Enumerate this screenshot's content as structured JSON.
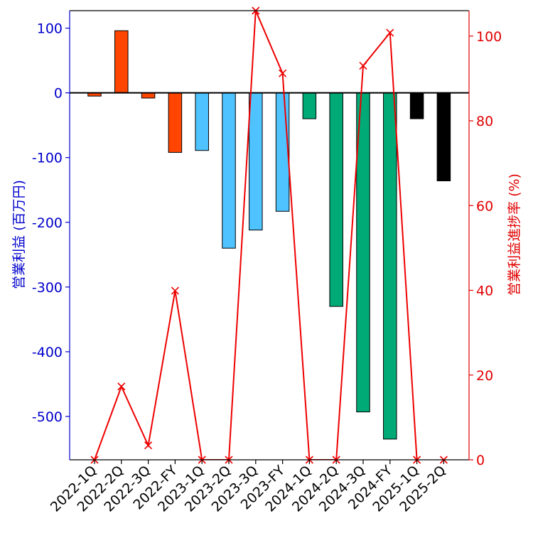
{
  "chart_data": {
    "type": "bar",
    "categories": [
      "2022-1Q",
      "2022-2Q",
      "2022-3Q",
      "2022-FY",
      "2023-1Q",
      "2023-2Q",
      "2023-3Q",
      "2023-FY",
      "2024-1Q",
      "2024-2Q",
      "2024-3Q",
      "2024-FY",
      "2025-1Q",
      "2025-2Q"
    ],
    "series": [
      {
        "axis": "left",
        "type": "bar",
        "values": [
          -5,
          96,
          -8,
          -92,
          -89,
          -240,
          -212,
          -183,
          -40,
          -330,
          -493,
          -535,
          -40,
          -136
        ],
        "colors": [
          "#ff4500",
          "#ff4500",
          "#ff4500",
          "#ff4500",
          "#4fc3ff",
          "#4fc3ff",
          "#4fc3ff",
          "#4fc3ff",
          "#00aa77",
          "#00aa77",
          "#00aa77",
          "#00aa77",
          "#000000",
          "#000000"
        ]
      },
      {
        "axis": "right",
        "type": "line",
        "values": [
          0,
          17.3,
          3.4,
          39.9,
          0,
          0,
          106.0,
          91.2,
          0,
          0,
          93.0,
          100.8,
          0,
          0
        ],
        "color": "#ee0000",
        "marker": "x",
        "line_visible": [
          true,
          true,
          true,
          true,
          true,
          true,
          true,
          true,
          true,
          true,
          true,
          true,
          true,
          false
        ]
      }
    ],
    "ylabel": "営業利益 (百万円)",
    "ylabel_right": "営業利益進捗率 (%)",
    "xlabel": "",
    "ylim": [
      -567,
      127
    ],
    "ylim_right": [
      0,
      106
    ],
    "yticks": [
      100,
      0,
      -100,
      -200,
      -300,
      -400,
      -500
    ],
    "yticks_right": [
      0,
      20,
      40,
      60,
      80,
      100
    ],
    "zero_line": true,
    "grid": false,
    "colors": {
      "left_axis": "#0000cc",
      "right_axis": "#e00000",
      "bar_outline": "#000000"
    }
  }
}
